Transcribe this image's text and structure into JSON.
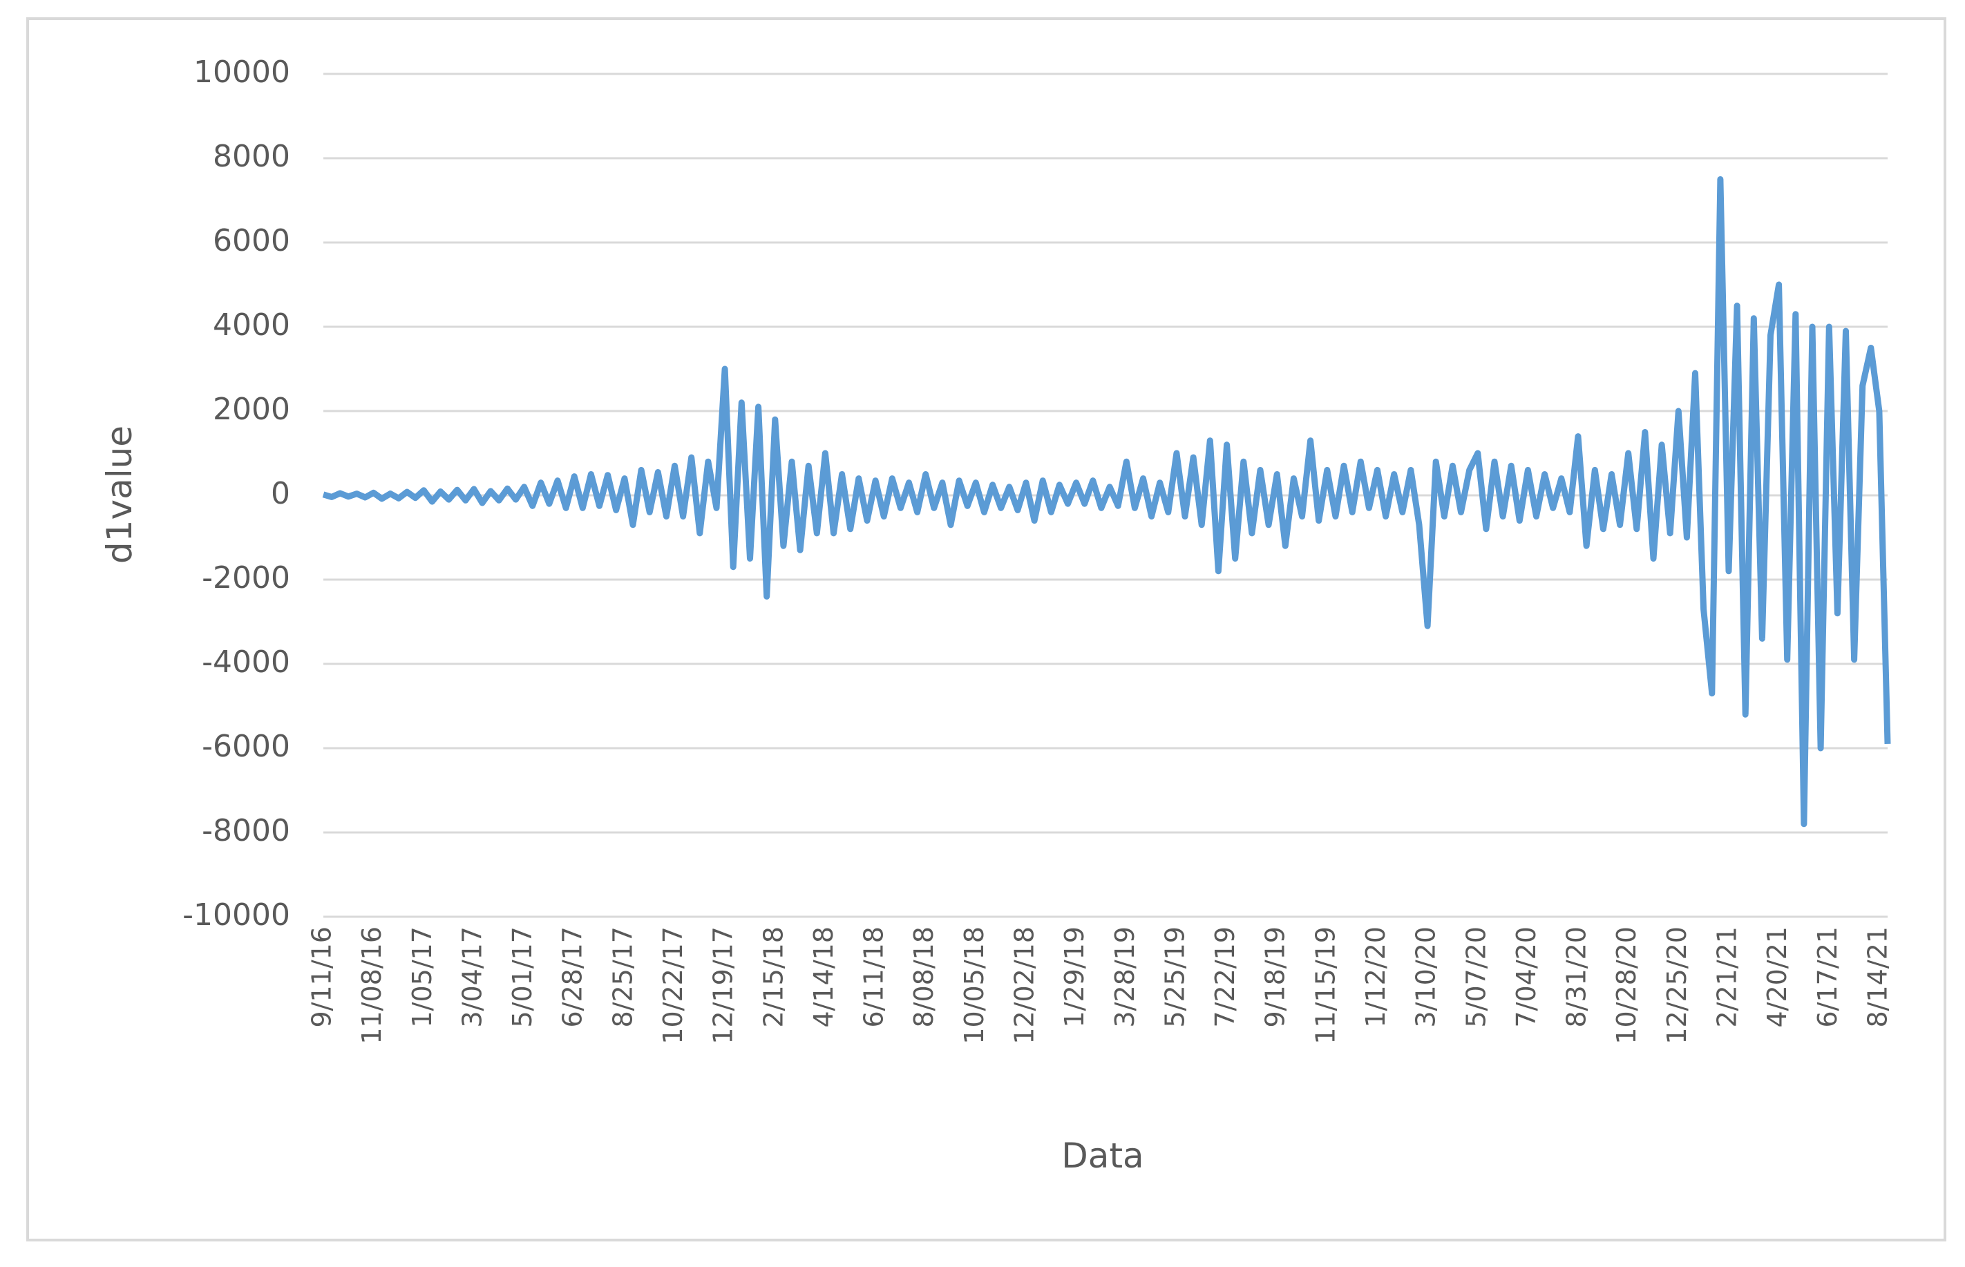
{
  "chart_data": {
    "type": "line",
    "x_label": "Data",
    "y_label": "d1value",
    "color": "#5b9bd5",
    "grid": true,
    "ylim": [
      -10000,
      10000
    ],
    "yticks": [
      -10000,
      -8000,
      -6000,
      -4000,
      -2000,
      0,
      2000,
      4000,
      6000,
      8000,
      10000
    ],
    "categories": [
      "9/11/16",
      null,
      null,
      null,
      null,
      null,
      "11/08/16",
      null,
      null,
      null,
      null,
      null,
      "1/05/17",
      null,
      null,
      null,
      null,
      null,
      "3/04/17",
      null,
      null,
      null,
      null,
      null,
      "5/01/17",
      null,
      null,
      null,
      null,
      null,
      "6/28/17",
      null,
      null,
      null,
      null,
      null,
      "8/25/17",
      null,
      null,
      null,
      null,
      null,
      "10/22/17",
      null,
      null,
      null,
      null,
      null,
      "12/19/17",
      null,
      null,
      null,
      null,
      null,
      "2/15/18",
      null,
      null,
      null,
      null,
      null,
      "4/14/18",
      null,
      null,
      null,
      null,
      null,
      "6/11/18",
      null,
      null,
      null,
      null,
      null,
      "8/08/18",
      null,
      null,
      null,
      null,
      null,
      "10/05/18",
      null,
      null,
      null,
      null,
      null,
      "12/02/18",
      null,
      null,
      null,
      null,
      null,
      "1/29/19",
      null,
      null,
      null,
      null,
      null,
      "3/28/19",
      null,
      null,
      null,
      null,
      null,
      "5/25/19",
      null,
      null,
      null,
      null,
      null,
      "7/22/19",
      null,
      null,
      null,
      null,
      null,
      "9/18/19",
      null,
      null,
      null,
      null,
      null,
      "11/15/19",
      null,
      null,
      null,
      null,
      null,
      "1/12/20",
      null,
      null,
      null,
      null,
      null,
      "3/10/20",
      null,
      null,
      null,
      null,
      null,
      "5/07/20",
      null,
      null,
      null,
      null,
      null,
      "7/04/20",
      null,
      null,
      null,
      null,
      null,
      "8/31/20",
      null,
      null,
      null,
      null,
      null,
      "10/28/20",
      null,
      null,
      null,
      null,
      null,
      "12/25/20",
      null,
      null,
      null,
      null,
      null,
      "2/21/21",
      null,
      null,
      null,
      null,
      null,
      "4/20/21",
      null,
      null,
      null,
      null,
      null,
      "6/17/21",
      null,
      null,
      null,
      null,
      null,
      "8/14/21",
      null
    ],
    "values": [
      20,
      -40,
      50,
      -30,
      40,
      -50,
      60,
      -80,
      40,
      -70,
      80,
      -60,
      120,
      -150,
      90,
      -100,
      130,
      -120,
      150,
      -180,
      100,
      -120,
      160,
      -100,
      200,
      -250,
      300,
      -200,
      350,
      -300,
      450,
      -300,
      500,
      -250,
      480,
      -350,
      400,
      -700,
      600,
      -400,
      550,
      -500,
      700,
      -500,
      900,
      -900,
      800,
      -300,
      3000,
      -1700,
      2200,
      -1500,
      2100,
      -2400,
      1800,
      -1200,
      800,
      -1300,
      700,
      -900,
      1000,
      -900,
      500,
      -800,
      400,
      -600,
      350,
      -500,
      400,
      -300,
      300,
      -400,
      500,
      -300,
      300,
      -700,
      350,
      -250,
      300,
      -400,
      250,
      -300,
      200,
      -350,
      300,
      -600,
      350,
      -400,
      250,
      -200,
      300,
      -200,
      350,
      -300,
      200,
      -250,
      800,
      -300,
      400,
      -500,
      300,
      -400,
      1000,
      -500,
      900,
      -700,
      1300,
      -1800,
      1200,
      -1500,
      800,
      -900,
      600,
      -700,
      500,
      -1200,
      400,
      -500,
      1300,
      -600,
      600,
      -500,
      700,
      -400,
      800,
      -300,
      600,
      -500,
      500,
      -400,
      600,
      -700,
      -3100,
      800,
      -500,
      700,
      -400,
      600,
      1000,
      -800,
      800,
      -500,
      700,
      -600,
      600,
      -500,
      500,
      -300,
      400,
      -400,
      1400,
      -1200,
      600,
      -800,
      500,
      -700,
      1000,
      -800,
      1500,
      -1500,
      1200,
      -900,
      2000,
      -1000,
      2900,
      -2700,
      -4700,
      7500,
      -1800,
      4500,
      -5200,
      4200,
      -3400,
      3800,
      5000,
      -3900,
      4300,
      -7800,
      4000,
      -6000,
      4000,
      -2800,
      3900,
      -3900,
      2600,
      3500,
      2000,
      -5900
    ]
  }
}
